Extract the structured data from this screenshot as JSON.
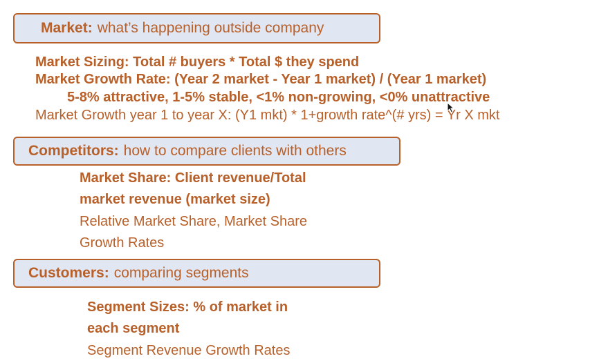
{
  "market": {
    "heading_title": "Market:",
    "heading_desc": "what’s happening outside company",
    "sizing": "Market Sizing: Total # buyers * Total $ they spend",
    "growth_rate": "Market Growth Rate: (Year 2 market - Year 1 market) / (Year 1 market)",
    "growth_scale": "5-8% attractive, 1-5% stable, <1% non-growing, <0% unattractive",
    "growth_formula": "Market Growth year 1 to year X: (Y1 mkt) * 1+growth rate^(# yrs) = Yr X mkt"
  },
  "competitors": {
    "heading_title": "Competitors:",
    "heading_desc": "how to compare clients with others",
    "share_line1": "Market Share: Client revenue/Total",
    "share_line2": "market revenue (market size)",
    "relative_line1": "Relative Market Share, Market Share",
    "relative_line2": "Growth Rates"
  },
  "customers": {
    "heading_title": "Customers:",
    "heading_desc": "comparing segments",
    "segment_line1": "Segment Sizes: % of market in",
    "segment_line2": "each segment",
    "segment_growth": "Segment Revenue Growth Rates"
  },
  "icons": {
    "cursor": "mouse-pointer-icon"
  },
  "colors": {
    "text": "#b8602a",
    "box_fill": "#e1e6f3",
    "box_border": "#b8602a"
  }
}
